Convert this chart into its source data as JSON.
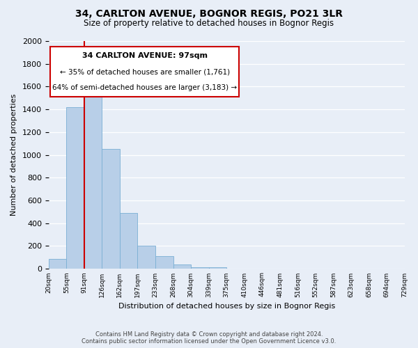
{
  "title": "34, CARLTON AVENUE, BOGNOR REGIS, PO21 3LR",
  "subtitle": "Size of property relative to detached houses in Bognor Regis",
  "xlabel": "Distribution of detached houses by size in Bognor Regis",
  "ylabel": "Number of detached properties",
  "bin_edges": [
    "20sqm",
    "55sqm",
    "91sqm",
    "126sqm",
    "162sqm",
    "197sqm",
    "233sqm",
    "268sqm",
    "304sqm",
    "339sqm",
    "375sqm",
    "410sqm",
    "446sqm",
    "481sqm",
    "516sqm",
    "552sqm",
    "587sqm",
    "623sqm",
    "658sqm",
    "694sqm",
    "729sqm"
  ],
  "bar_heights": [
    85,
    1420,
    1610,
    1050,
    490,
    205,
    110,
    40,
    15,
    10,
    0,
    0,
    0,
    0,
    0,
    0,
    0,
    0,
    0,
    0
  ],
  "bar_color": "#b8cfe8",
  "bar_edge_color": "#7aafd4",
  "vline_position": 2,
  "vline_color": "#cc0000",
  "annotation_title": "34 CARLTON AVENUE: 97sqm",
  "annotation_line1": "← 35% of detached houses are smaller (1,761)",
  "annotation_line2": "64% of semi-detached houses are larger (3,183) →",
  "annotation_box_facecolor": "#ffffff",
  "annotation_box_edgecolor": "#cc0000",
  "ylim": [
    0,
    2000
  ],
  "yticks": [
    0,
    200,
    400,
    600,
    800,
    1000,
    1200,
    1400,
    1600,
    1800,
    2000
  ],
  "footer_line1": "Contains HM Land Registry data © Crown copyright and database right 2024.",
  "footer_line2": "Contains public sector information licensed under the Open Government Licence v3.0.",
  "bg_color": "#e8eef7"
}
